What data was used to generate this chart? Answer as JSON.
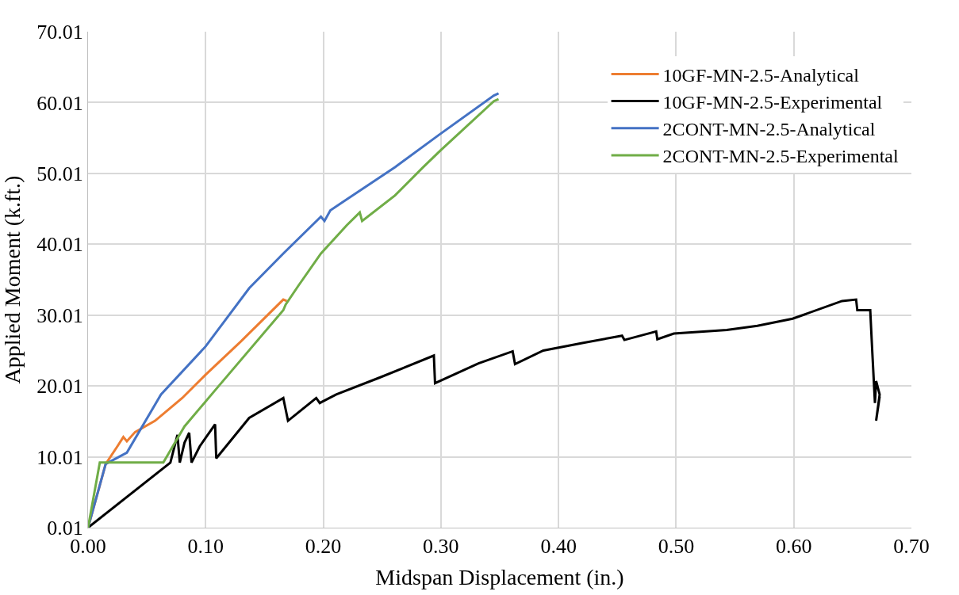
{
  "chart_data": {
    "type": "line",
    "xlabel": "Midspan Displacement (in.)",
    "ylabel": "Applied Moment (k.ft.)",
    "xlim": [
      0,
      0.7
    ],
    "xticks": [
      {
        "value": 0,
        "label": "0.00"
      },
      {
        "value": 0.1,
        "label": "0.10"
      },
      {
        "value": 0.2,
        "label": "0.20"
      },
      {
        "value": 0.3,
        "label": "0.30"
      },
      {
        "value": 0.4,
        "label": "0.40"
      },
      {
        "value": 0.5,
        "label": "0.50"
      },
      {
        "value": 0.6,
        "label": "0.60"
      },
      {
        "value": 0.7,
        "label": "0.70"
      }
    ],
    "ylim": [
      0.01,
      70.01
    ],
    "yticks": [
      0.01,
      10.01,
      20.01,
      30.01,
      40.01,
      50.01,
      60.01,
      70.01
    ],
    "grid": true,
    "legend": "top right",
    "marker": "none",
    "line_style": "solid",
    "series": [
      {
        "name": "10GF-MN-2.5-Analytical",
        "color": "#ed7d31",
        "x": [
          0,
          0.015,
          0.025,
          0.03,
          0.033,
          0.04,
          0.057,
          0.08,
          0.1,
          0.13,
          0.166,
          0.169
        ],
        "values": [
          0.01,
          9.0,
          11.5,
          12.8,
          12.2,
          13.5,
          15.1,
          18.3,
          21.6,
          26.3,
          32.2,
          32.0
        ]
      },
      {
        "name": "10GF-MN-2.5-Experimental",
        "color": "#000000",
        "x": [
          0,
          0.07,
          0.076,
          0.078,
          0.082,
          0.086,
          0.088,
          0.095,
          0.108,
          0.109,
          0.137,
          0.166,
          0.17,
          0.194,
          0.197,
          0.211,
          0.248,
          0.294,
          0.295,
          0.332,
          0.361,
          0.363,
          0.387,
          0.421,
          0.454,
          0.456,
          0.483,
          0.484,
          0.498,
          0.543,
          0.569,
          0.599,
          0.641,
          0.653,
          0.654,
          0.665,
          0.666,
          0.667,
          0.669,
          0.67,
          0.673,
          0.67,
          0.673
        ],
        "values": [
          0.01,
          9.2,
          13.1,
          9.2,
          12.0,
          13.4,
          9.2,
          11.5,
          14.6,
          9.8,
          15.5,
          18.3,
          15.1,
          18.3,
          17.6,
          18.8,
          21.2,
          24.3,
          20.4,
          23.2,
          24.9,
          23.1,
          25.0,
          26.1,
          27.1,
          26.5,
          27.7,
          26.6,
          27.4,
          27.9,
          28.5,
          29.5,
          32.0,
          32.2,
          30.7,
          30.7,
          27.3,
          24.0,
          17.6,
          20.7,
          18.8,
          15.1,
          18.5
        ]
      },
      {
        "name": "2CONT-MN-2.5-Analytical",
        "color": "#4472c4",
        "x": [
          0,
          0.015,
          0.033,
          0.062,
          0.1,
          0.137,
          0.166,
          0.198,
          0.201,
          0.206,
          0.261,
          0.298,
          0.345,
          0.349
        ],
        "values": [
          0.01,
          9.0,
          10.6,
          18.8,
          25.6,
          33.8,
          38.7,
          43.9,
          43.3,
          44.8,
          50.9,
          55.4,
          61.0,
          61.3
        ]
      },
      {
        "name": "2CONT-MN-2.5-Experimental",
        "color": "#70ad47",
        "x": [
          0,
          0.01,
          0.064,
          0.082,
          0.107,
          0.166,
          0.168,
          0.179,
          0.198,
          0.22,
          0.231,
          0.233,
          0.261,
          0.285,
          0.3,
          0.345,
          0.349
        ],
        "values": [
          0.01,
          9.2,
          9.2,
          14.3,
          19.2,
          30.7,
          31.5,
          34.2,
          38.7,
          42.7,
          44.5,
          43.3,
          46.9,
          50.9,
          53.3,
          60.2,
          60.5
        ]
      }
    ]
  }
}
